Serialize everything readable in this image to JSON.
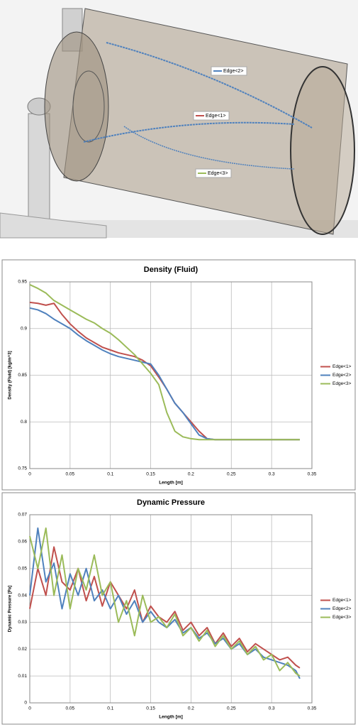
{
  "scene": {
    "labels": [
      "Edge<2>",
      "Edge<1>",
      "Edge<3>"
    ]
  },
  "chart_data": [
    {
      "type": "line",
      "title": "Density (Fluid)",
      "x_label": "Length [m]",
      "y_label": "Density (Fluid) [kg/m^3]",
      "x": [
        0,
        0.01,
        0.02,
        0.03,
        0.04,
        0.05,
        0.06,
        0.07,
        0.08,
        0.09,
        0.1,
        0.11,
        0.12,
        0.13,
        0.14,
        0.15,
        0.16,
        0.17,
        0.18,
        0.19,
        0.2,
        0.21,
        0.22,
        0.23,
        0.24,
        0.25,
        0.26,
        0.27,
        0.28,
        0.29,
        0.3,
        0.31,
        0.32,
        0.33,
        0.335
      ],
      "series": [
        {
          "name": "Edge<1>",
          "color": "#c0504d",
          "values": [
            0.928,
            0.927,
            0.925,
            0.927,
            0.915,
            0.905,
            0.897,
            0.89,
            0.885,
            0.88,
            0.877,
            0.874,
            0.872,
            0.87,
            0.866,
            0.86,
            0.848,
            0.835,
            0.82,
            0.81,
            0.8,
            0.79,
            0.782,
            0.781,
            0.781,
            0.781,
            0.781,
            0.781,
            0.781,
            0.781,
            0.781,
            0.781,
            0.781,
            0.781,
            0.781
          ]
        },
        {
          "name": "Edge<2>",
          "color": "#4f81bd",
          "values": [
            0.922,
            0.92,
            0.916,
            0.91,
            0.905,
            0.9,
            0.893,
            0.887,
            0.882,
            0.877,
            0.873,
            0.87,
            0.868,
            0.866,
            0.864,
            0.862,
            0.85,
            0.835,
            0.82,
            0.81,
            0.798,
            0.786,
            0.782,
            0.781,
            0.781,
            0.781,
            0.781,
            0.781,
            0.781,
            0.781,
            0.781,
            0.781,
            0.781,
            0.781,
            0.781
          ]
        },
        {
          "name": "Edge<3>",
          "color": "#9bbb59",
          "values": [
            0.947,
            0.943,
            0.938,
            0.93,
            0.925,
            0.92,
            0.915,
            0.91,
            0.906,
            0.9,
            0.895,
            0.888,
            0.88,
            0.872,
            0.862,
            0.852,
            0.84,
            0.81,
            0.79,
            0.784,
            0.782,
            0.781,
            0.781,
            0.781,
            0.781,
            0.781,
            0.781,
            0.781,
            0.781,
            0.781,
            0.781,
            0.781,
            0.781,
            0.781,
            0.781
          ]
        }
      ],
      "xlim": [
        0,
        0.35
      ],
      "xticks": [
        0,
        0.05,
        0.1,
        0.15,
        0.2,
        0.25,
        0.3,
        0.35
      ],
      "ylim": [
        0.75,
        0.95
      ],
      "yticks": [
        0.75,
        0.8,
        0.85,
        0.9,
        0.95
      ],
      "grid": true,
      "legend": "right"
    },
    {
      "type": "line",
      "title": "Dynamic Pressure",
      "x_label": "Length [m]",
      "y_label": "Dynamic Pressure [Pa]",
      "x": [
        0,
        0.01,
        0.02,
        0.03,
        0.04,
        0.05,
        0.06,
        0.07,
        0.08,
        0.09,
        0.1,
        0.11,
        0.12,
        0.13,
        0.14,
        0.15,
        0.16,
        0.17,
        0.18,
        0.19,
        0.2,
        0.21,
        0.22,
        0.23,
        0.24,
        0.25,
        0.26,
        0.27,
        0.28,
        0.29,
        0.3,
        0.31,
        0.32,
        0.33,
        0.335
      ],
      "series": [
        {
          "name": "Edge<1>",
          "color": "#c0504d",
          "values": [
            0.035,
            0.05,
            0.04,
            0.058,
            0.045,
            0.042,
            0.05,
            0.038,
            0.047,
            0.036,
            0.045,
            0.04,
            0.035,
            0.042,
            0.03,
            0.036,
            0.032,
            0.03,
            0.034,
            0.027,
            0.03,
            0.025,
            0.028,
            0.022,
            0.026,
            0.021,
            0.024,
            0.019,
            0.022,
            0.02,
            0.018,
            0.016,
            0.017,
            0.014,
            0.013
          ]
        },
        {
          "name": "Edge<2>",
          "color": "#4f81bd",
          "values": [
            0.04,
            0.065,
            0.045,
            0.052,
            0.035,
            0.048,
            0.04,
            0.05,
            0.038,
            0.042,
            0.035,
            0.04,
            0.033,
            0.038,
            0.03,
            0.034,
            0.03,
            0.028,
            0.031,
            0.026,
            0.028,
            0.024,
            0.026,
            0.022,
            0.024,
            0.02,
            0.022,
            0.018,
            0.02,
            0.017,
            0.016,
            0.015,
            0.014,
            0.012,
            0.009
          ]
        },
        {
          "name": "Edge<3>",
          "color": "#9bbb59",
          "values": [
            0.062,
            0.05,
            0.065,
            0.04,
            0.055,
            0.035,
            0.05,
            0.042,
            0.055,
            0.04,
            0.045,
            0.03,
            0.038,
            0.025,
            0.04,
            0.03,
            0.032,
            0.028,
            0.033,
            0.025,
            0.028,
            0.023,
            0.027,
            0.021,
            0.025,
            0.02,
            0.023,
            0.018,
            0.021,
            0.016,
            0.018,
            0.012,
            0.015,
            0.011,
            0.01
          ]
        }
      ],
      "xlim": [
        0,
        0.35
      ],
      "xticks": [
        0,
        0.05,
        0.1,
        0.15,
        0.2,
        0.25,
        0.3,
        0.35
      ],
      "ylim": [
        0,
        0.07
      ],
      "yticks": [
        0,
        0.01,
        0.02,
        0.03,
        0.04,
        0.05,
        0.06,
        0.07
      ],
      "grid": true,
      "legend": "right"
    }
  ]
}
